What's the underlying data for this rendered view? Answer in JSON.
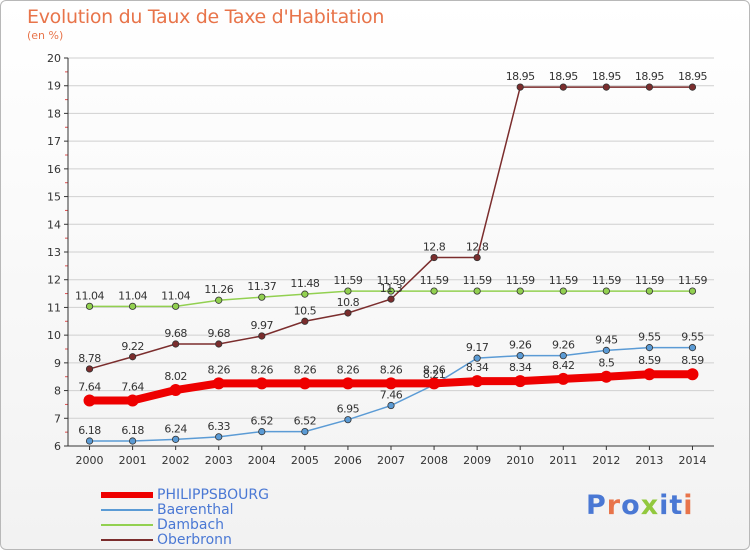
{
  "colors": {
    "title": "#e8744a",
    "legend_text": "#4a78d4",
    "grid": "#d0d0d0",
    "axis": "#333333",
    "value_label": "#333333"
  },
  "chart_data": {
    "type": "line",
    "title": "Evolution du Taux de Taxe d'Habitation",
    "ylabel": "(en %)",
    "xlabel": "",
    "ylim": [
      6,
      20
    ],
    "yticks": [
      6,
      7,
      8,
      9,
      10,
      11,
      12,
      13,
      14,
      15,
      16,
      17,
      18,
      19,
      20
    ],
    "grid": true,
    "legend_position": "bottom-left",
    "x": [
      "2000",
      "2001",
      "2002",
      "2003",
      "2004",
      "2005",
      "2006",
      "2007",
      "2008",
      "2009",
      "2010",
      "2011",
      "2012",
      "2013",
      "2014"
    ],
    "series": [
      {
        "name": "PHILIPPSBOURG",
        "color": "#ee0000",
        "values": [
          7.64,
          7.64,
          8.02,
          8.26,
          8.26,
          8.26,
          8.26,
          8.26,
          8.26,
          8.34,
          8.34,
          8.42,
          8.5,
          8.59,
          8.59
        ],
        "labels": [
          "7.64",
          "7.64",
          "8.02",
          "8.26",
          "8.26",
          "8.26",
          "8.26",
          "8.26",
          "8.26",
          "8.34",
          "8.34",
          "8.42",
          "8.5",
          "8.59",
          "8.59"
        ]
      },
      {
        "name": "Baerenthal",
        "color": "#5b9bd5",
        "values": [
          6.18,
          6.18,
          6.24,
          6.33,
          6.52,
          6.52,
          6.95,
          7.46,
          8.21,
          9.17,
          9.26,
          9.26,
          9.45,
          9.55,
          9.55
        ],
        "labels": [
          "6.18",
          "6.18",
          "6.24",
          "6.33",
          "6.52",
          "6.52",
          "6.95",
          "7.46",
          "8.21",
          "9.17",
          "9.26",
          "9.26",
          "9.45",
          "9.55",
          "9.55"
        ]
      },
      {
        "name": "Dambach",
        "color": "#92d050",
        "values": [
          11.04,
          11.04,
          11.04,
          11.26,
          11.37,
          11.48,
          11.59,
          11.59,
          11.59,
          11.59,
          11.59,
          11.59,
          11.59,
          11.59,
          11.59
        ],
        "labels": [
          "11.04",
          "11.04",
          "11.04",
          "11.26",
          "11.37",
          "11.48",
          "11.59",
          "11.59",
          "11.59",
          "11.59",
          "11.59",
          "11.59",
          "11.59",
          "11.59",
          "11.59"
        ]
      },
      {
        "name": "Oberbronn",
        "color": "#7b2d2d",
        "values": [
          8.78,
          9.22,
          9.68,
          9.68,
          9.97,
          10.5,
          10.8,
          11.3,
          12.8,
          12.8,
          18.95,
          18.95,
          18.95,
          18.95,
          18.95
        ],
        "labels": [
          "8.78",
          "9.22",
          "9.68",
          "9.68",
          "9.97",
          "10.5",
          "10.8",
          "11.3",
          "12.8",
          "12.8",
          "18.95",
          "18.95",
          "18.95",
          "18.95",
          "18.95"
        ]
      }
    ]
  },
  "brand": {
    "text": "Proxiti",
    "letters": [
      "P",
      "r",
      "o",
      "x",
      "i",
      "t",
      "i"
    ],
    "letter_colors": [
      "#4a78d4",
      "#e8744a",
      "#4a78d4",
      "#92c83e",
      "#4a78d4",
      "#4a78d4",
      "#e8744a"
    ]
  }
}
